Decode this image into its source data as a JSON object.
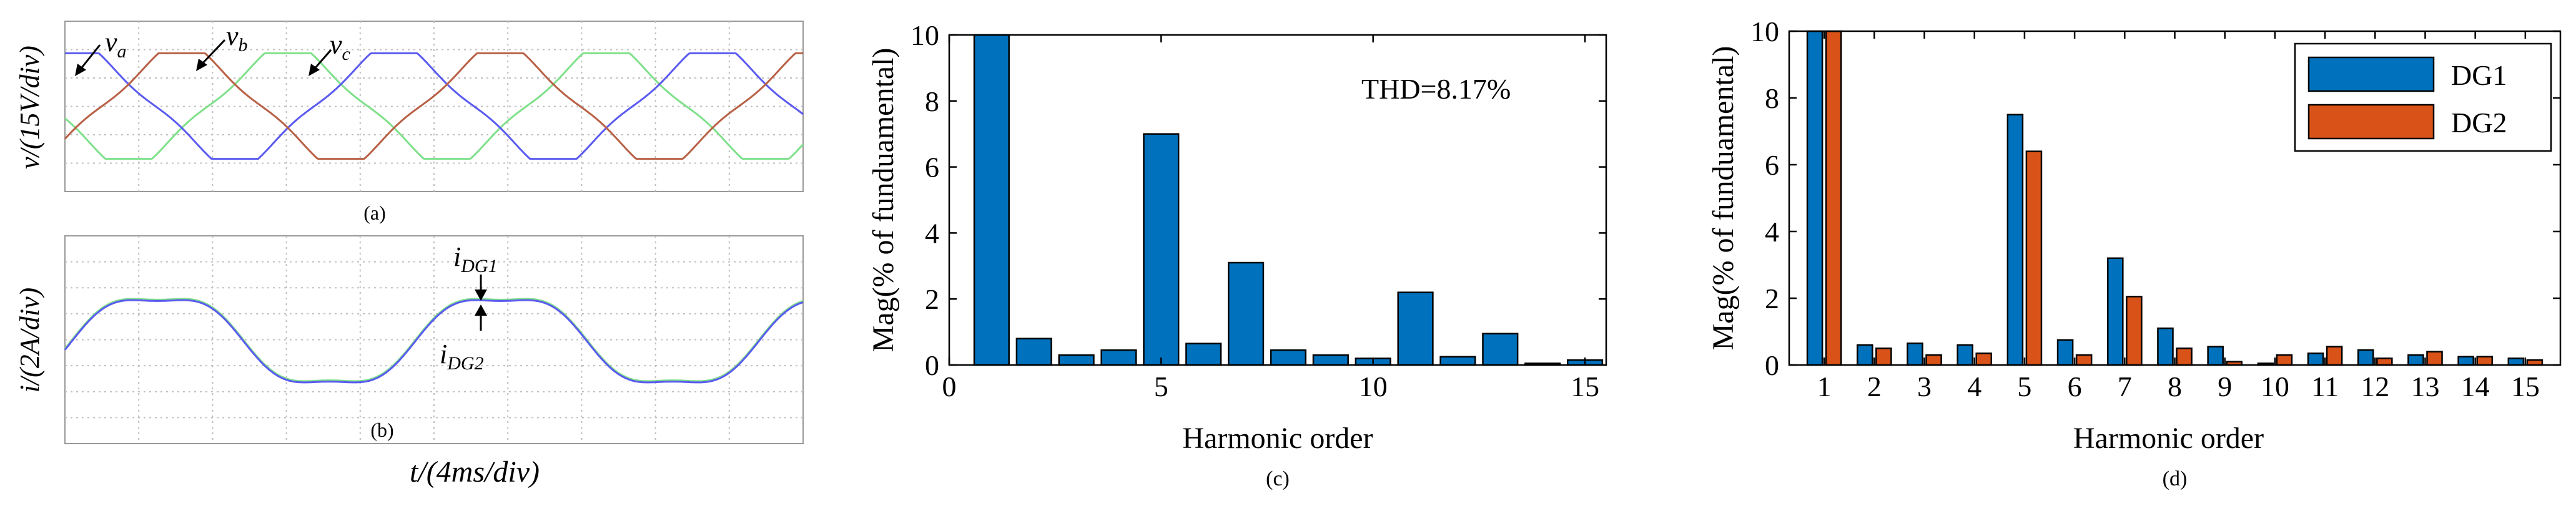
{
  "colors": {
    "blue": "#0072BD",
    "orange": "#D95319",
    "green": "#7FE08A",
    "wave_blue": "#5A5AF0",
    "wave_red": "#B86045",
    "grid": "#BFBFBF"
  },
  "scope": {
    "a": {
      "ylabel": "v/(15V/div)",
      "label_va": "v",
      "sub_va": "a",
      "label_vb": "v",
      "sub_vb": "b",
      "label_vc": "v",
      "sub_vc": "c",
      "caption": "(a)"
    },
    "b": {
      "ylabel": "i/(2A/div)",
      "label_i1": "i",
      "sub_i1": "DG1",
      "label_i2": "i",
      "sub_i2": "DG2",
      "caption": "(b)"
    },
    "xlabel": "t/(4ms/div)"
  },
  "chart_data": [
    {
      "type": "bar",
      "caption": "(c)",
      "annotation": "THD=8.17%",
      "xlabel": "Harmonic order",
      "ylabel": "Mag(% of funduamental)",
      "xlim": [
        0,
        15.5
      ],
      "ylim": [
        0,
        10
      ],
      "xticks": [
        "0",
        "5",
        "10",
        "15"
      ],
      "yticks": [
        "0",
        "2",
        "4",
        "6",
        "8",
        "10"
      ],
      "x": [
        1,
        2,
        3,
        4,
        5,
        6,
        7,
        8,
        9,
        10,
        11,
        12,
        13,
        14,
        15
      ],
      "values": [
        10,
        0.8,
        0.3,
        0.45,
        7.0,
        0.65,
        3.1,
        0.45,
        0.3,
        0.2,
        2.2,
        0.25,
        0.95,
        0.05,
        0.15
      ]
    },
    {
      "type": "bar",
      "caption": "(d)",
      "xlabel": "Harmonic order",
      "ylabel": "Mag(% of funduamental)",
      "ylim": [
        0,
        10
      ],
      "categories": [
        "1",
        "2",
        "3",
        "4",
        "5",
        "6",
        "7",
        "8",
        "9",
        "10",
        "11",
        "12",
        "13",
        "14",
        "15"
      ],
      "yticks": [
        "0",
        "2",
        "4",
        "6",
        "8",
        "10"
      ],
      "legend_position": "top-right",
      "series": [
        {
          "name": "DG1",
          "values": [
            10,
            0.6,
            0.65,
            0.6,
            7.5,
            0.75,
            3.2,
            1.1,
            0.55,
            0.05,
            0.35,
            0.45,
            0.3,
            0.25,
            0.2
          ]
        },
        {
          "name": "DG2",
          "values": [
            10,
            0.5,
            0.3,
            0.35,
            6.4,
            0.3,
            2.05,
            0.5,
            0.1,
            0.3,
            0.55,
            0.2,
            0.4,
            0.25,
            0.15
          ]
        }
      ]
    }
  ]
}
